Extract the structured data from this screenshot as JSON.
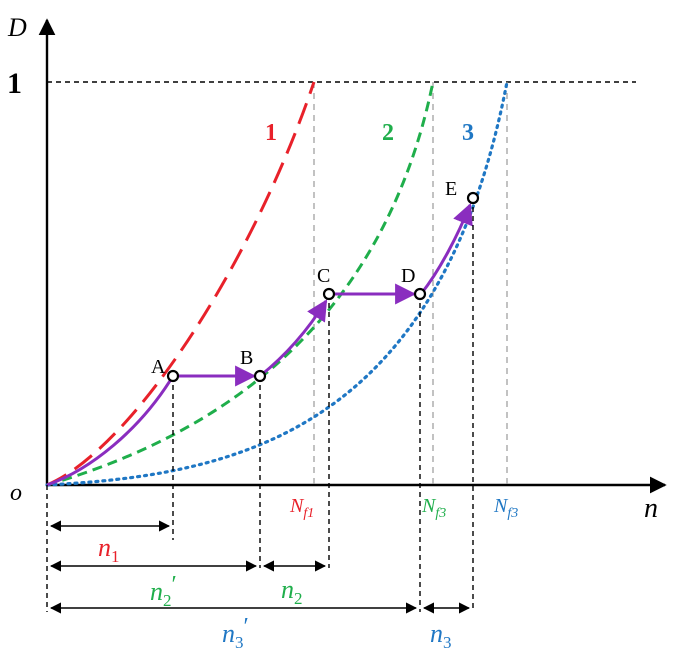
{
  "axes": {
    "y_label": "D",
    "x_label": "n",
    "origin_label": "o",
    "y_one_label": "1"
  },
  "curves": [
    {
      "label": "1",
      "color": "#e8212a",
      "style": "long-dash",
      "failure_label_main": "N",
      "failure_label_sub": "f1"
    },
    {
      "label": "2",
      "color": "#1fae4b",
      "style": "dash",
      "failure_label_main": "N",
      "failure_label_sub": "f3"
    },
    {
      "label": "3",
      "color": "#1f77c4",
      "style": "dotted",
      "failure_label_main": "N",
      "failure_label_sub": "f3"
    }
  ],
  "loading_path": {
    "color": "#8a2dbf",
    "points": [
      "A",
      "B",
      "C",
      "D",
      "E"
    ]
  },
  "intervals": [
    {
      "main": "n",
      "sub": "1",
      "prime": "",
      "color": "#e8212a"
    },
    {
      "main": "n",
      "sub": "2",
      "prime": "′",
      "color": "#1fae4b"
    },
    {
      "main": "n",
      "sub": "2",
      "prime": "",
      "color": "#1fae4b"
    },
    {
      "main": "n",
      "sub": "3",
      "prime": "′",
      "color": "#1f77c4"
    },
    {
      "main": "n",
      "sub": "3",
      "prime": "",
      "color": "#1f77c4"
    }
  ]
}
